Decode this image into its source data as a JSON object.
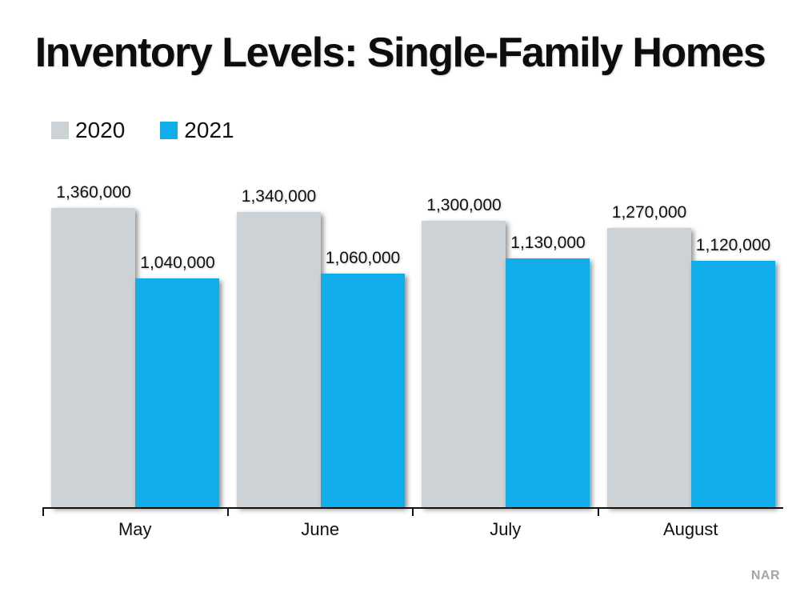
{
  "title": "Inventory Levels: Single-Family Homes",
  "legend": [
    {
      "label": "2020",
      "color": "#CDD2D6"
    },
    {
      "label": "2021",
      "color": "#10ADEA"
    }
  ],
  "source": "NAR",
  "chart_data": {
    "type": "bar",
    "title": "Inventory Levels: Single-Family Homes",
    "categories": [
      "May",
      "June",
      "July",
      "August"
    ],
    "series": [
      {
        "name": "2020",
        "color": "#CDD2D6",
        "values": [
          1360000,
          1340000,
          1300000,
          1270000
        ],
        "labels": [
          "1,360,000",
          "1,340,000",
          "1,300,000",
          "1,270,000"
        ]
      },
      {
        "name": "2021",
        "color": "#10ADEA",
        "values": [
          1040000,
          1060000,
          1130000,
          1120000
        ],
        "labels": [
          "1,040,000",
          "1,060,000",
          "1,130,000",
          "1,120,000"
        ]
      }
    ],
    "xlabel": "",
    "ylabel": "",
    "ylim": [
      0,
      1400000
    ],
    "grid": false,
    "y_axis_visible": false,
    "value_labels": true,
    "legend_position": "top-left",
    "source_credit": "NAR"
  }
}
